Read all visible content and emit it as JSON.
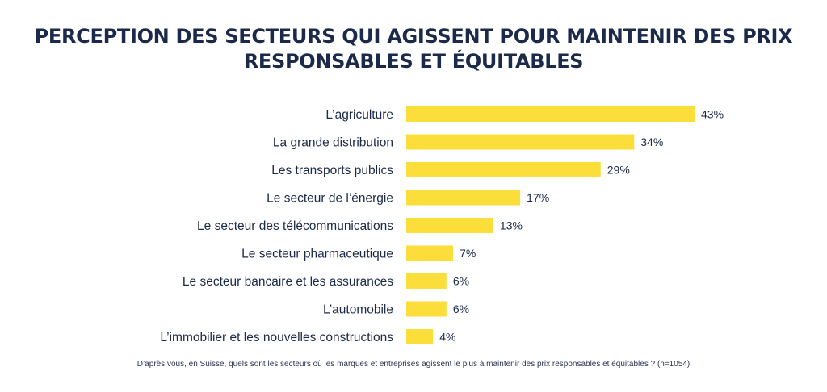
{
  "title": {
    "line1": "PERCEPTION DES SECTEURS QUI AGISSENT POUR MAINTENIR DES PRIX",
    "line2": "RESPONSABLES ET ÉQUITABLES"
  },
  "footnote": "D’après vous, en Suisse, quels sont les secteurs où les marques et entreprises agissent le plus à maintenir des prix responsables et équitables ? (n=1054)",
  "colors": {
    "bar": "#fcde3a",
    "title": "#1b2a4a",
    "label": "#1b2a4a"
  },
  "chart_data": {
    "type": "bar",
    "orientation": "horizontal",
    "categories": [
      "L’agriculture",
      "La grande distribution",
      "Les transports publics",
      "Le secteur de l’énergie",
      "Le secteur des télécommunications",
      "Le secteur pharmaceutique",
      "Le secteur bancaire et les assurances",
      "L’automobile",
      "L’immobilier et les nouvelles constructions"
    ],
    "values": [
      43,
      34,
      29,
      17,
      13,
      7,
      6,
      6,
      4
    ],
    "value_labels": [
      "43%",
      "34%",
      "29%",
      "17%",
      "13%",
      "7%",
      "6%",
      "6%",
      "4%"
    ],
    "unit": "%",
    "xlim": [
      0,
      43
    ],
    "grid": false,
    "legend": "none"
  }
}
